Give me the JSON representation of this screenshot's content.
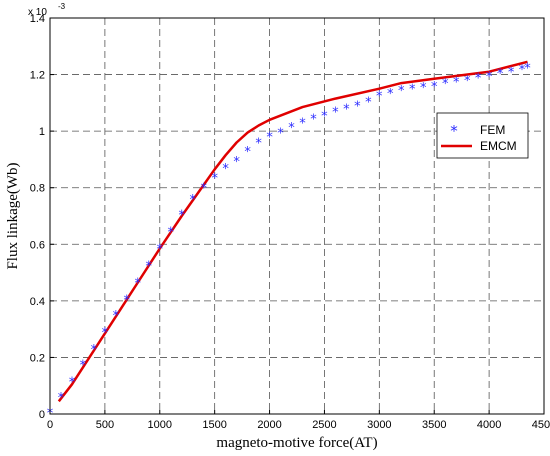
{
  "chart_data": {
    "type": "line",
    "xlabel": "magneto-motive force(AT)",
    "ylabel": "Flux linkage(Wb)",
    "y_scale_label": "x 10",
    "y_scale_exponent": "-3",
    "xlim": [
      0,
      4500
    ],
    "ylim": [
      0,
      1.4
    ],
    "x_ticks": [
      "0",
      "500",
      "1000",
      "1500",
      "2000",
      "2500",
      "3000",
      "3500",
      "4000",
      "4500"
    ],
    "y_ticks": [
      "0",
      "0.2",
      "0.4",
      "0.6",
      "0.8",
      "1",
      "1.2",
      "1.4"
    ],
    "grid": true,
    "legend_position": "right",
    "series": [
      {
        "name": "FEM",
        "style": "star",
        "color": "#2b2bff",
        "points": [
          [
            0,
            0.0
          ],
          [
            100,
            0.055
          ],
          [
            200,
            0.11
          ],
          [
            300,
            0.17
          ],
          [
            400,
            0.225
          ],
          [
            500,
            0.285
          ],
          [
            600,
            0.345
          ],
          [
            700,
            0.4
          ],
          [
            800,
            0.46
          ],
          [
            900,
            0.52
          ],
          [
            1000,
            0.58
          ],
          [
            1100,
            0.64
          ],
          [
            1200,
            0.7
          ],
          [
            1300,
            0.755
          ],
          [
            1400,
            0.795
          ],
          [
            1500,
            0.83
          ],
          [
            1600,
            0.865
          ],
          [
            1700,
            0.89
          ],
          [
            1800,
            0.925
          ],
          [
            1900,
            0.955
          ],
          [
            2000,
            0.975
          ],
          [
            2100,
            0.99
          ],
          [
            2200,
            1.01
          ],
          [
            2300,
            1.025
          ],
          [
            2400,
            1.04
          ],
          [
            2500,
            1.05
          ],
          [
            2600,
            1.065
          ],
          [
            2700,
            1.075
          ],
          [
            2800,
            1.085
          ],
          [
            2900,
            1.1
          ],
          [
            3000,
            1.12
          ],
          [
            3100,
            1.13
          ],
          [
            3200,
            1.14
          ],
          [
            3300,
            1.145
          ],
          [
            3400,
            1.15
          ],
          [
            3500,
            1.155
          ],
          [
            3600,
            1.165
          ],
          [
            3700,
            1.17
          ],
          [
            3800,
            1.175
          ],
          [
            3900,
            1.185
          ],
          [
            4000,
            1.19
          ],
          [
            4100,
            1.2
          ],
          [
            4200,
            1.205
          ],
          [
            4300,
            1.215
          ],
          [
            4350,
            1.22
          ]
        ]
      },
      {
        "name": "EMCM",
        "style": "line",
        "color": "#e00000",
        "points": [
          [
            80,
            0.045
          ],
          [
            200,
            0.105
          ],
          [
            400,
            0.225
          ],
          [
            600,
            0.345
          ],
          [
            800,
            0.465
          ],
          [
            1000,
            0.585
          ],
          [
            1200,
            0.7
          ],
          [
            1400,
            0.81
          ],
          [
            1500,
            0.865
          ],
          [
            1600,
            0.915
          ],
          [
            1700,
            0.96
          ],
          [
            1800,
            0.995
          ],
          [
            1900,
            1.02
          ],
          [
            2000,
            1.04
          ],
          [
            2300,
            1.085
          ],
          [
            2600,
            1.115
          ],
          [
            3000,
            1.15
          ],
          [
            3200,
            1.17
          ],
          [
            3500,
            1.185
          ],
          [
            4000,
            1.21
          ],
          [
            4350,
            1.245
          ]
        ]
      }
    ]
  }
}
